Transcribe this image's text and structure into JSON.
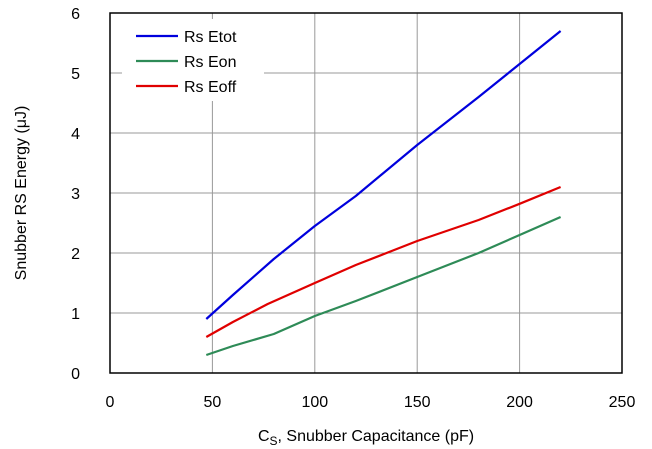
{
  "chart_data": {
    "type": "line",
    "xlabel_main": "C",
    "xlabel_sub": "S",
    "xlabel_rest": ", Snubber Capacitance (pF)",
    "ylabel": "Snubber RS Energy (μJ)",
    "xlim": [
      0,
      250
    ],
    "ylim": [
      0,
      6
    ],
    "xticks": [
      "0",
      "50",
      "100",
      "150",
      "200",
      "250"
    ],
    "yticks": [
      "0",
      "1",
      "2",
      "3",
      "4",
      "5",
      "6"
    ],
    "grid": true,
    "legend_position": "top-left",
    "series": [
      {
        "name": "Rs Etot",
        "color": "#0000dd",
        "x": [
          47,
          60,
          80,
          100,
          120,
          150,
          180,
          200,
          220
        ],
        "y": [
          0.9,
          1.3,
          1.9,
          2.45,
          2.95,
          3.8,
          4.6,
          5.15,
          5.7
        ]
      },
      {
        "name": "Rs Eon",
        "color": "#2e8b57",
        "x": [
          47,
          60,
          80,
          100,
          120,
          150,
          180,
          200,
          220
        ],
        "y": [
          0.3,
          0.45,
          0.65,
          0.95,
          1.2,
          1.6,
          2.0,
          2.3,
          2.6
        ]
      },
      {
        "name": "Rs Eoff",
        "color": "#e00000",
        "x": [
          47,
          60,
          77,
          100,
          120,
          150,
          180,
          200,
          220
        ],
        "y": [
          0.6,
          0.85,
          1.15,
          1.5,
          1.8,
          2.2,
          2.55,
          2.82,
          3.1
        ]
      }
    ]
  }
}
